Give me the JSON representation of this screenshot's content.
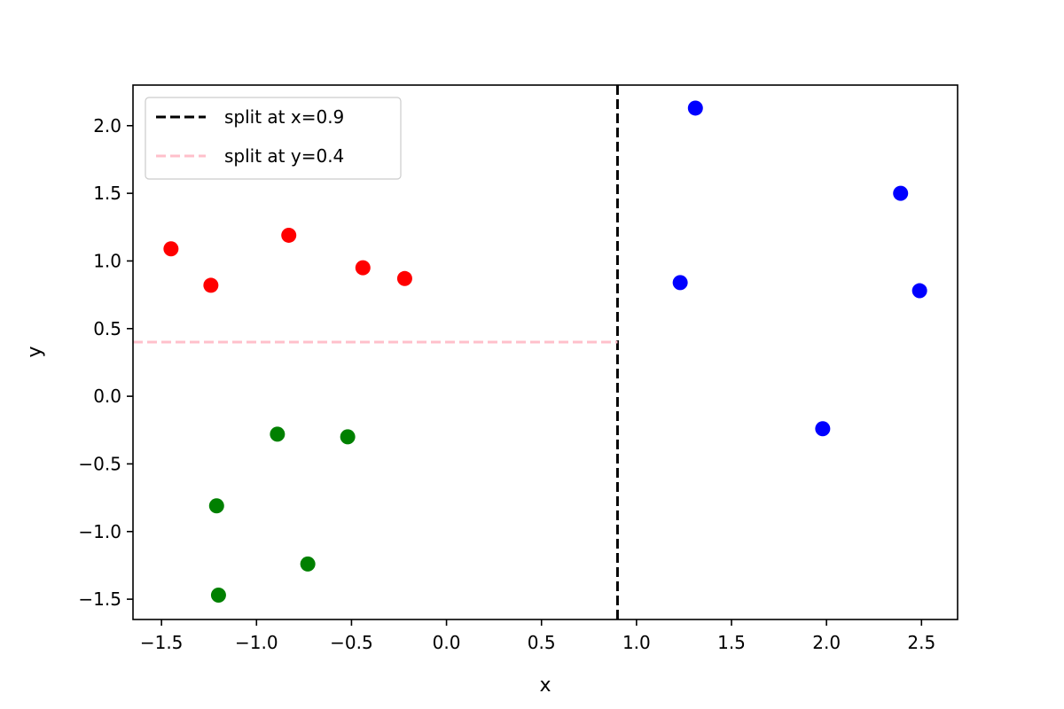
{
  "chart_data": {
    "type": "scatter",
    "title": "",
    "xlabel": "x",
    "ylabel": "y",
    "xlim": [
      -1.65,
      2.69
    ],
    "ylim": [
      -1.65,
      2.3
    ],
    "xticks": [
      -1.5,
      -1.0,
      -0.5,
      0.0,
      0.5,
      1.0,
      1.5,
      2.0,
      2.5
    ],
    "yticks": [
      -1.5,
      -1.0,
      -0.5,
      0.0,
      0.5,
      1.0,
      1.5,
      2.0
    ],
    "xtick_labels": [
      "−1.5",
      "−1.0",
      "−0.5",
      "0.0",
      "0.5",
      "1.0",
      "1.5",
      "2.0",
      "2.5"
    ],
    "ytick_labels": [
      "−1.5",
      "−1.0",
      "−0.5",
      "0.0",
      "0.5",
      "1.0",
      "1.5",
      "2.0"
    ],
    "grid": false,
    "legend_position": "upper-left",
    "series": [
      {
        "color": "#ff0000",
        "points": [
          [
            -1.45,
            1.09
          ],
          [
            -1.24,
            0.82
          ],
          [
            -0.83,
            1.19
          ],
          [
            -0.44,
            0.95
          ],
          [
            -0.22,
            0.87
          ]
        ]
      },
      {
        "color": "#008000",
        "points": [
          [
            -0.89,
            -0.28
          ],
          [
            -0.52,
            -0.3
          ],
          [
            -1.21,
            -0.81
          ],
          [
            -0.73,
            -1.24
          ],
          [
            -1.2,
            -1.47
          ]
        ]
      },
      {
        "color": "#0000ff",
        "points": [
          [
            1.31,
            2.13
          ],
          [
            1.23,
            0.84
          ],
          [
            2.39,
            1.5
          ],
          [
            2.49,
            0.78
          ],
          [
            1.98,
            -0.24
          ]
        ]
      }
    ],
    "reference_lines": [
      {
        "orientation": "vertical",
        "value": 0.9,
        "color": "#000000",
        "style": "dashed",
        "extent": "full",
        "label": "split at x=0.9"
      },
      {
        "orientation": "horizontal",
        "value": 0.4,
        "color": "#ffc0cb",
        "style": "dashed",
        "extent": "left-of-x-split",
        "label": "split at y=0.4"
      }
    ]
  }
}
